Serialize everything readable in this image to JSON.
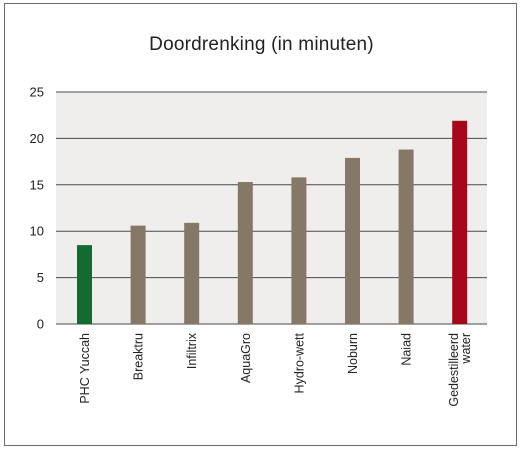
{
  "chart_data": {
    "type": "bar",
    "title": "Doordrenking (in minuten)",
    "xlabel": "",
    "ylabel": "",
    "ylim": [
      0,
      25
    ],
    "yticks": [
      0,
      5,
      10,
      15,
      20,
      25
    ],
    "grid": true,
    "categories": [
      "PHC Yuccah",
      "Breaktru",
      "Infiltrix",
      "AquaGro",
      "Hydro-wett",
      "Noburn",
      "Naiad",
      "Gedestilleerd water"
    ],
    "category_lines": [
      [
        "PHC Yuccah"
      ],
      [
        "Breaktru"
      ],
      [
        "Infiltrix"
      ],
      [
        "AquaGro"
      ],
      [
        "Hydro-wett"
      ],
      [
        "Noburn"
      ],
      [
        "Naiad"
      ],
      [
        "Gedestilleerd",
        "water"
      ]
    ],
    "values": [
      8.5,
      10.6,
      10.9,
      15.3,
      15.8,
      17.9,
      18.8,
      21.9
    ],
    "colors": [
      "#136b30",
      "#857866",
      "#857866",
      "#857866",
      "#857866",
      "#857866",
      "#857866",
      "#a5071b"
    ],
    "plot_background": "#efeeed"
  }
}
